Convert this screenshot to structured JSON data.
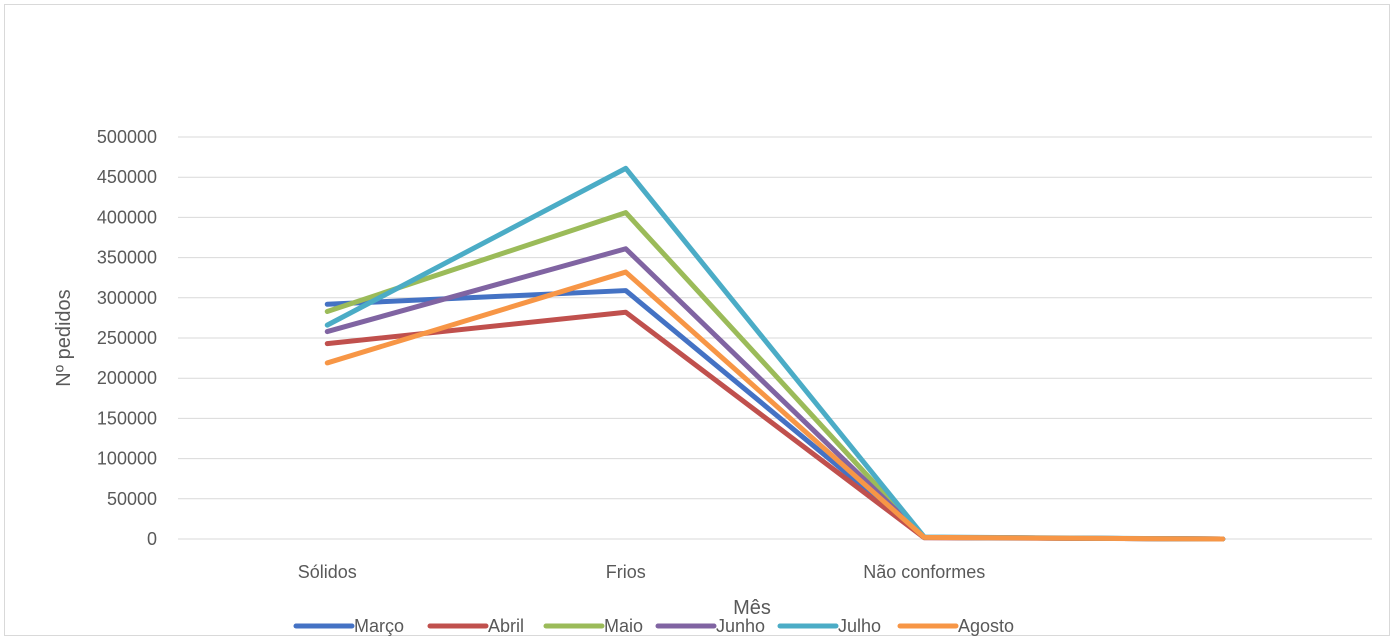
{
  "chart_data": {
    "type": "line",
    "title": "",
    "xlabel": "Mês",
    "ylabel": "Nº pedidos",
    "ylim": [
      0,
      500000
    ],
    "yticks": [
      "0",
      "50000",
      "100000",
      "150000",
      "200000",
      "250000",
      "300000",
      "350000",
      "400000",
      "450000",
      "500000"
    ],
    "categories": [
      "Sólidos",
      "Frios",
      "Não conformes",
      ""
    ],
    "grid": true,
    "legend_position": "bottom",
    "series": [
      {
        "name": "Março",
        "color": "#4472C4",
        "values": [
          292000,
          309000,
          2000,
          0
        ]
      },
      {
        "name": "Abril",
        "color": "#C0504D",
        "values": [
          243000,
          282000,
          1500,
          0
        ]
      },
      {
        "name": "Maio",
        "color": "#9BBB59",
        "values": [
          283000,
          406000,
          2000,
          0
        ]
      },
      {
        "name": "Junho",
        "color": "#8064A2",
        "values": [
          258000,
          361000,
          2000,
          0
        ]
      },
      {
        "name": "Julho",
        "color": "#4BACC6",
        "values": [
          266000,
          461000,
          2500,
          0
        ]
      },
      {
        "name": "Agosto",
        "color": "#F79646",
        "values": [
          219000,
          332000,
          2000,
          0
        ]
      }
    ]
  }
}
